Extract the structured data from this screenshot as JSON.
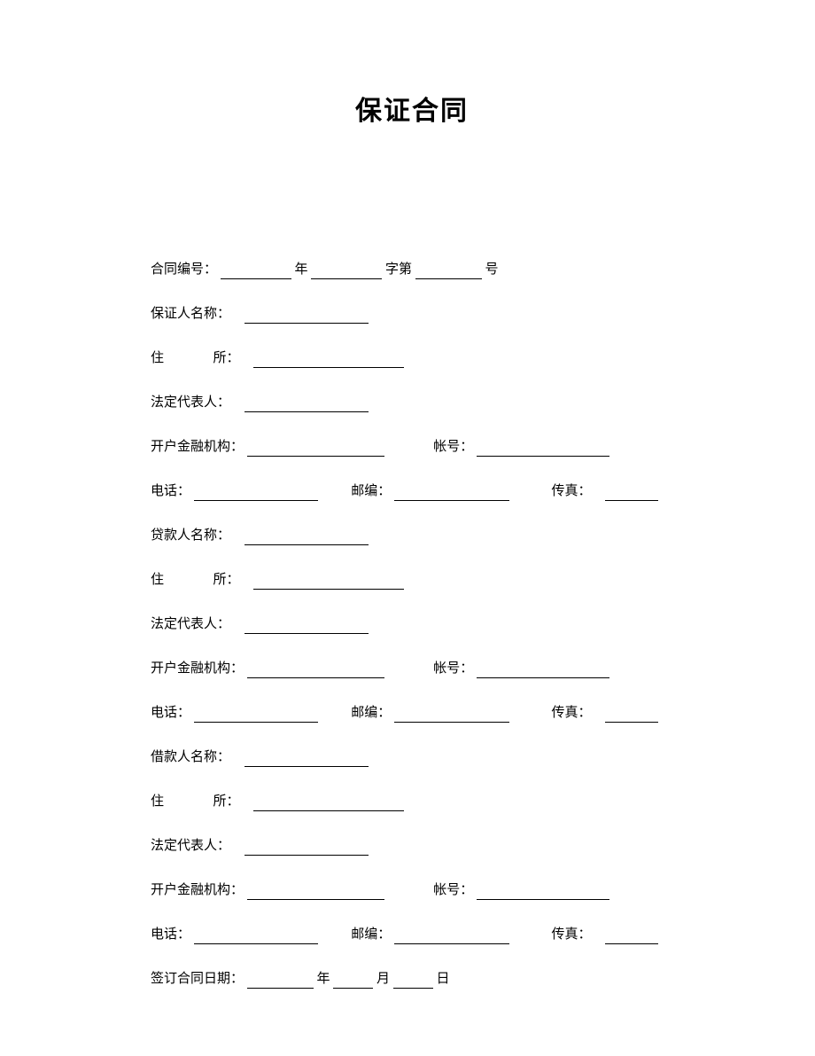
{
  "title": "保证合同",
  "lines": {
    "contract_no": {
      "label": "合同编号：",
      "part1": "年",
      "part2": "字第",
      "part3": "号"
    },
    "guarantor_name": {
      "label": "保证人名称："
    },
    "address": {
      "label": "住",
      "label2": "所："
    },
    "legal_rep": {
      "label": "法定代表人："
    },
    "bank": {
      "label": "开户金融机构：",
      "acct_label": "帐号："
    },
    "contact": {
      "phone_label": "电话：",
      "zip_label": "邮编：",
      "fax_label": "传真："
    },
    "lender_name": {
      "label": "贷款人名称："
    },
    "borrower_name": {
      "label": "借款人名称："
    },
    "sign_date": {
      "label": "签订合同日期：",
      "y": "年",
      "m": "月",
      "d": "日"
    }
  },
  "style": {
    "title_fontsize": 30,
    "body_fontsize": 15,
    "text_color": "#000000",
    "background": "#ffffff",
    "underline_color": "#000000"
  }
}
